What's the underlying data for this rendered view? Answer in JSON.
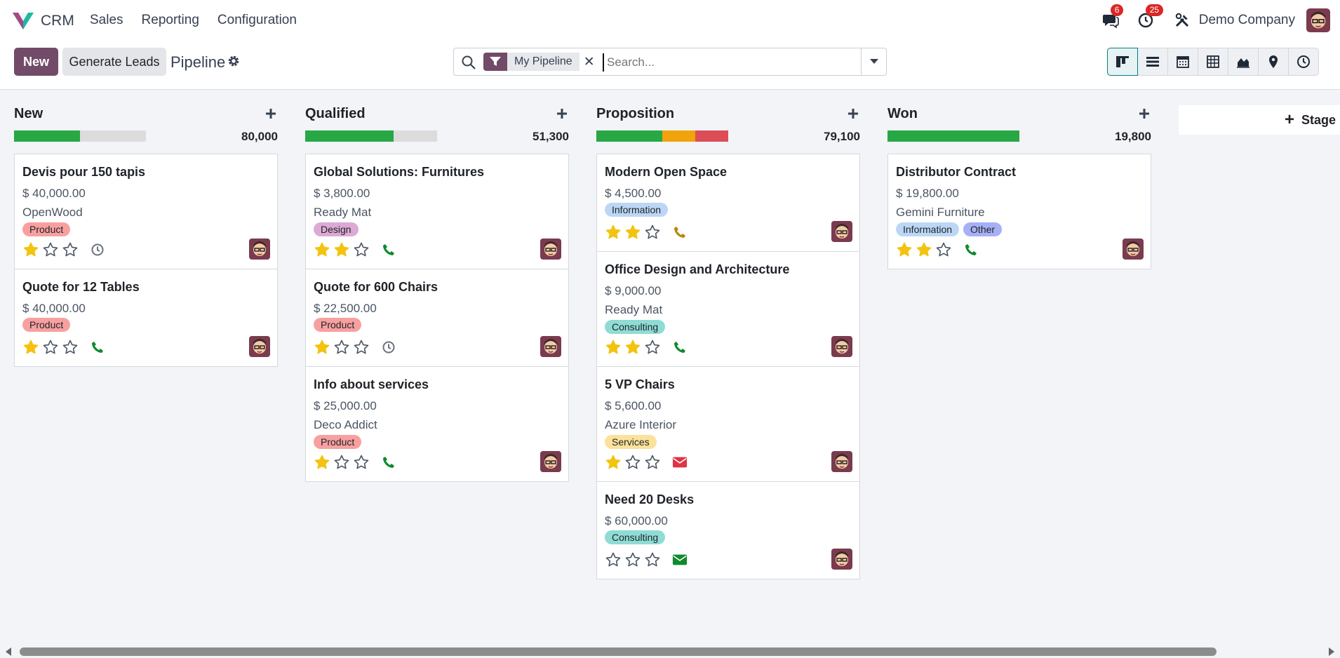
{
  "app": {
    "name": "CRM"
  },
  "nav": {
    "items": [
      "Sales",
      "Reporting",
      "Configuration"
    ],
    "messages_count": "6",
    "activities_count": "25",
    "company": "Demo Company"
  },
  "control": {
    "new_label": "New",
    "generate_label": "Generate Leads",
    "title": "Pipeline",
    "facet": "My Pipeline",
    "search_placeholder": "Search..."
  },
  "add_stage_label": "Stage",
  "colors": {
    "brand": "#714b67",
    "accent": "#017e84",
    "green": "#28a745",
    "orange": "#f0a30a",
    "red": "#dc4d56"
  },
  "columns": [
    {
      "title": "New",
      "total": "80,000",
      "progress": [
        {
          "color": "#28a745",
          "pct": 50
        }
      ],
      "cards": [
        {
          "title": "Devis pour 150 tapis",
          "amount": "$ 40,000.00",
          "partner": "OpenWood",
          "tags": [
            {
              "label": "Product",
              "color": "#f8a0a0"
            }
          ],
          "stars": 1,
          "activity": "clock-icon"
        },
        {
          "title": "Quote for 12 Tables",
          "amount": "$ 40,000.00",
          "partner": "",
          "tags": [
            {
              "label": "Product",
              "color": "#f8a0a0"
            }
          ],
          "stars": 1,
          "activity": "phone-icon"
        }
      ]
    },
    {
      "title": "Qualified",
      "total": "51,300",
      "progress": [
        {
          "color": "#28a745",
          "pct": 67
        }
      ],
      "cards": [
        {
          "title": "Global Solutions: Furnitures",
          "amount": "$ 3,800.00",
          "partner": "Ready Mat",
          "tags": [
            {
              "label": "Design",
              "color": "#dcaad5"
            }
          ],
          "stars": 2,
          "activity": "phone-icon"
        },
        {
          "title": "Quote for 600 Chairs",
          "amount": "$ 22,500.00",
          "partner": "",
          "tags": [
            {
              "label": "Product",
              "color": "#f8a0a0"
            }
          ],
          "stars": 1,
          "activity": "clock-icon"
        },
        {
          "title": "Info about services",
          "amount": "$ 25,000.00",
          "partner": "Deco Addict",
          "tags": [
            {
              "label": "Product",
              "color": "#f8a0a0"
            }
          ],
          "stars": 1,
          "activity": "phone-icon"
        }
      ]
    },
    {
      "title": "Proposition",
      "total": "79,100",
      "progress": [
        {
          "color": "#28a745",
          "pct": 50
        },
        {
          "color": "#f0a30a",
          "pct": 25
        },
        {
          "color": "#dc4d56",
          "pct": 25
        }
      ],
      "cards": [
        {
          "title": "Modern Open Space",
          "amount": "$ 4,500.00",
          "partner": "",
          "tags": [
            {
              "label": "Information",
              "color": "#bcd7f5"
            }
          ],
          "stars": 2,
          "activity": "phone-warning-icon"
        },
        {
          "title": "Office Design and Architecture",
          "amount": "$ 9,000.00",
          "partner": "Ready Mat",
          "tags": [
            {
              "label": "Consulting",
              "color": "#8fdcd4"
            }
          ],
          "stars": 2,
          "activity": "phone-icon"
        },
        {
          "title": "5 VP Chairs",
          "amount": "$ 5,600.00",
          "partner": "Azure Interior",
          "tags": [
            {
              "label": "Services",
              "color": "#fbe29a"
            }
          ],
          "stars": 1,
          "activity": "envelope-overdue-icon"
        },
        {
          "title": "Need 20 Desks",
          "amount": "$ 60,000.00",
          "partner": "",
          "tags": [
            {
              "label": "Consulting",
              "color": "#8fdcd4"
            }
          ],
          "stars": 0,
          "activity": "envelope-icon"
        }
      ]
    },
    {
      "title": "Won",
      "total": "19,800",
      "progress": [
        {
          "color": "#28a745",
          "pct": 100
        }
      ],
      "cards": [
        {
          "title": "Distributor Contract",
          "amount": "$ 19,800.00",
          "partner": "Gemini Furniture",
          "tags": [
            {
              "label": "Information",
              "color": "#bcd7f5"
            },
            {
              "label": "Other",
              "color": "#a6b0f5"
            }
          ],
          "stars": 2,
          "activity": "phone-icon"
        }
      ]
    }
  ]
}
